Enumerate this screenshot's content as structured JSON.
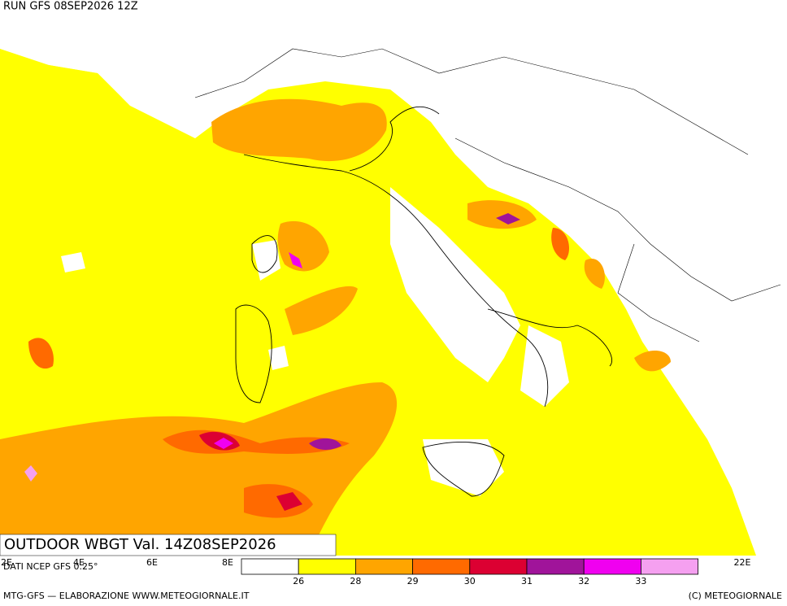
{
  "header": {
    "run": "RUN GFS 08SEP2026 12Z"
  },
  "map": {
    "title": "OUTDOOR WBGT Val. 14Z08SEP2026",
    "source": "DATI NCEP GFS 0.25°",
    "longitude_labels": [
      "2E",
      "4E",
      "6E",
      "8E",
      "22E"
    ]
  },
  "legend": {
    "thresholds": [
      26,
      28,
      29,
      30,
      31,
      32,
      33
    ],
    "colors": [
      "#ffffff",
      "#ffff00",
      "#ffa500",
      "#ff6a00",
      "#dc0032",
      "#a0149a",
      "#f000f0",
      "#f5a0f0"
    ]
  },
  "footer": {
    "left": "MTG-GFS — ELABORAZIONE WWW.METEOGIORNALE.IT",
    "right": "(C) METEOGIORNALE"
  }
}
